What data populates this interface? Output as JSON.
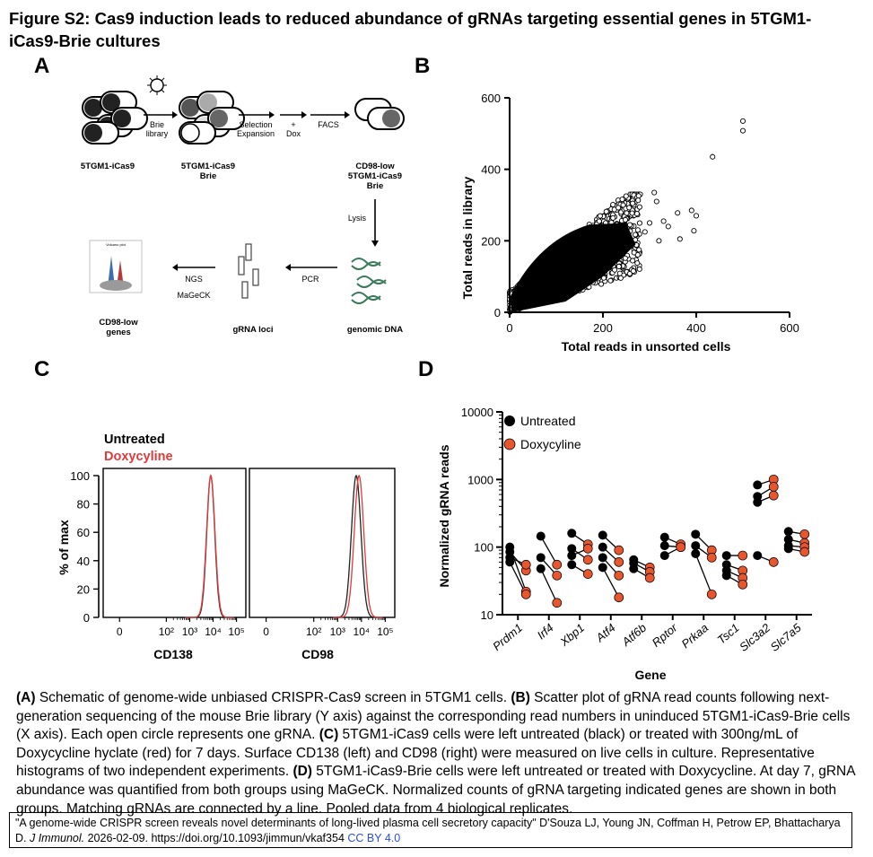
{
  "figure": {
    "title": "Figure S2: Cas9 induction leads to reduced abundance of gRNAs targeting essential genes in 5TGM1-iCas9-Brie cultures",
    "title_line1": "Figure S2: Cas9 induction leads to reduced abundance of gRNAs targeting essential genes in 5TGM1-",
    "title_line2": "iCas9-Brie cultures"
  },
  "panels": {
    "a": "A",
    "b": "B",
    "c": "C",
    "d": "D"
  },
  "schematic": {
    "cell1_label": "5TGM1-iCas9",
    "arrow1_line1": "Brie",
    "arrow1_line2": "library",
    "cell2_label_line1": "5TGM1-iCas9",
    "cell2_label_line2": "Brie",
    "arrow2_line1": "Selection",
    "arrow2_line2": "Expansion",
    "arrow3_line1": "+",
    "arrow3_line2": "Dox",
    "arrow4_label": "FACS",
    "cell3_label_line1": "CD98-low",
    "cell3_label_line2": "5TGM1-iCas9",
    "cell3_label_line3": "Brie",
    "lysis_label": "Lysis",
    "genomic_label": "genomic DNA",
    "pcr_label": "PCR",
    "gRNA_label": "gRNA loci",
    "ngs_label": "NGS",
    "mageck_label": "MaGeCK",
    "out_label_line1": "CD98-low",
    "out_label_line2": "genes",
    "volcano_title": "Volcano plot"
  },
  "chart_data": [
    {
      "panel": "B",
      "type": "scatter",
      "xlabel": "Total reads in unsorted cells",
      "ylabel": "Total reads in library",
      "xlim": [
        0,
        600
      ],
      "ylim": [
        0,
        600
      ],
      "xticks": [
        "0",
        "200",
        "400",
        "600"
      ],
      "yticks": [
        "0",
        "200",
        "400",
        "600"
      ],
      "points": [
        {
          "x": 500,
          "y": 535
        },
        {
          "x": 500,
          "y": 508
        },
        {
          "x": 435,
          "y": 435
        },
        {
          "x": 400,
          "y": 270
        },
        {
          "x": 390,
          "y": 285
        },
        {
          "x": 360,
          "y": 278
        },
        {
          "x": 395,
          "y": 228
        },
        {
          "x": 330,
          "y": 255
        },
        {
          "x": 300,
          "y": 250
        },
        {
          "x": 315,
          "y": 310
        },
        {
          "x": 310,
          "y": 335
        },
        {
          "x": 340,
          "y": 240
        },
        {
          "x": 290,
          "y": 225
        },
        {
          "x": 365,
          "y": 205
        },
        {
          "x": 320,
          "y": 200
        }
      ]
    },
    {
      "panel": "C",
      "type": "line",
      "legend": [
        "Untreated",
        "Doxycyline"
      ],
      "ylabel": "% of max",
      "yticks": [
        "0",
        "20",
        "40",
        "60",
        "80",
        "100"
      ],
      "ylim": [
        0,
        100
      ],
      "subplots": [
        {
          "xlabel": "CD138",
          "peak_untreated": 3.9,
          "peak_dox": 3.9
        },
        {
          "xlabel": "CD98",
          "peak_untreated": 3.78,
          "peak_dox": 3.9
        }
      ],
      "xticks": [
        "0",
        "10²",
        "10³",
        "10⁴",
        "10⁵"
      ],
      "series": [
        {
          "name": "Untreated",
          "color": "#222222"
        },
        {
          "name": "Doxycyline",
          "color": "#e03a3a"
        }
      ]
    },
    {
      "panel": "D",
      "type": "scatter",
      "xlabel": "Gene",
      "ylabel": "Normalized gRNA reads",
      "ylog": true,
      "ylim": [
        10,
        10000
      ],
      "yticks": [
        "10",
        "100",
        "1000",
        "10000"
      ],
      "categories": [
        "Prdm1",
        "Irf4",
        "Xbp1",
        "Atf4",
        "Atf6b",
        "Rptor",
        "Prkaa",
        "Tsc1",
        "Slc3a2",
        "Slc7a5"
      ],
      "series": [
        {
          "name": "Untreated",
          "color": "#000000"
        },
        {
          "name": "Doxycyline",
          "color": "#e8562e"
        }
      ],
      "pairs": [
        [
          [
            100,
            22
          ],
          [
            85,
            45
          ],
          [
            70,
            55
          ],
          [
            60,
            20
          ]
        ],
        [
          [
            145,
            55
          ],
          [
            70,
            38
          ],
          [
            48,
            15
          ]
        ],
        [
          [
            160,
            110
          ],
          [
            95,
            65
          ],
          [
            75,
            95
          ],
          [
            55,
            40
          ]
        ],
        [
          [
            150,
            90
          ],
          [
            100,
            60
          ],
          [
            70,
            38
          ],
          [
            50,
            18
          ]
        ],
        [
          [
            65,
            50
          ],
          [
            58,
            43
          ],
          [
            48,
            35
          ]
        ],
        [
          [
            140,
            110
          ],
          [
            105,
            100
          ],
          [
            75,
            100
          ]
        ],
        [
          [
            155,
            90
          ],
          [
            105,
            70
          ],
          [
            80,
            20
          ]
        ],
        [
          [
            75,
            75
          ],
          [
            55,
            45
          ],
          [
            45,
            35
          ],
          [
            38,
            28
          ]
        ],
        [
          [
            830,
            1000
          ],
          [
            560,
            780
          ],
          [
            460,
            580
          ],
          [
            75,
            60
          ]
        ],
        [
          [
            170,
            155
          ],
          [
            130,
            115
          ],
          [
            105,
            100
          ],
          [
            95,
            85
          ]
        ]
      ]
    }
  ],
  "caption": {
    "a_label": "(A)",
    "a_text": " Schematic of genome-wide unbiased CRISPR-Cas9 screen in 5TGM1 cells. ",
    "b_label": "(B)",
    "b_text": " Scatter plot of gRNA read counts following next-generation sequencing of the mouse Brie library (Y axis) against the corresponding read numbers in uninduced 5TGM1-iCas9-Brie cells (X axis). Each open circle represents one gRNA. ",
    "c_label": "(C)",
    "c_text": " 5TGM1-iCas9 cells were left untreated (black) or treated with 300ng/mL of Doxycycline hyclate (red) for 7 days. Surface CD138 (left) and CD98 (right) were measured on live cells in culture. Representative histograms of two independent experiments. ",
    "d_label": "(D)",
    "d_text": " 5TGM1-iCas9-Brie cells were left untreated or treated with Doxycycline. At day 7, gRNA abundance was quantified from both groups using MaGeCK. Normalized counts of gRNA targeting indicated genes are shown in both groups. Matching gRNAs are connected by a line. Pooled data from 4 biological replicates."
  },
  "citation": {
    "text_prefix": "\"A genome-wide CRISPR screen reveals novel determinants of long-lived plasma cell secretory capacity\" D'Souza LJ, Young JN, Coffman H, Petrow EP, Bhattacharya D. ",
    "journal": "J Immunol.",
    "text_suffix": " 2026-02-09. https://doi.org/10.1093/jimmun/vkaf354 ",
    "license": "CC BY 4.0",
    "license_color": "#2a4fd8"
  }
}
